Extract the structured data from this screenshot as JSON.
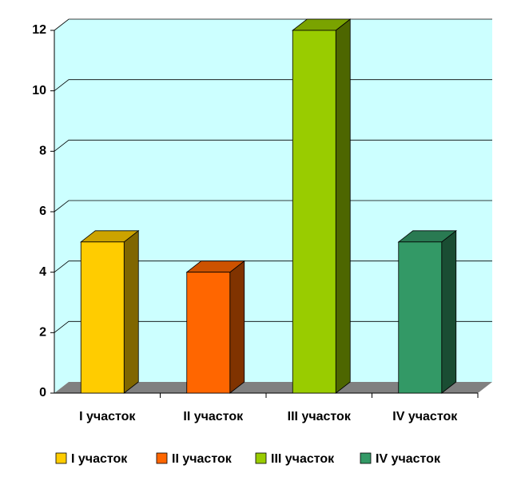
{
  "chart_data": {
    "type": "bar3d",
    "categories": [
      "I участок",
      "II участок",
      "III участок",
      "IV участок"
    ],
    "series": [
      {
        "name": "I участок",
        "color": "#ffcc00",
        "values": [
          5,
          null,
          null,
          null
        ]
      },
      {
        "name": "II участок",
        "color": "#ff6600",
        "values": [
          null,
          4,
          null,
          null
        ]
      },
      {
        "name": "III участок",
        "color": "#99cc00",
        "values": [
          null,
          null,
          12,
          null
        ]
      },
      {
        "name": "IV участок",
        "color": "#339966",
        "values": [
          null,
          null,
          null,
          5
        ]
      }
    ],
    "ylim": [
      0,
      12
    ],
    "yticks": [
      0,
      2,
      4,
      6,
      8,
      10,
      12
    ],
    "grid": true,
    "wall_color": "#ccffff",
    "floor_color": "#808080",
    "legend": "bottom"
  }
}
